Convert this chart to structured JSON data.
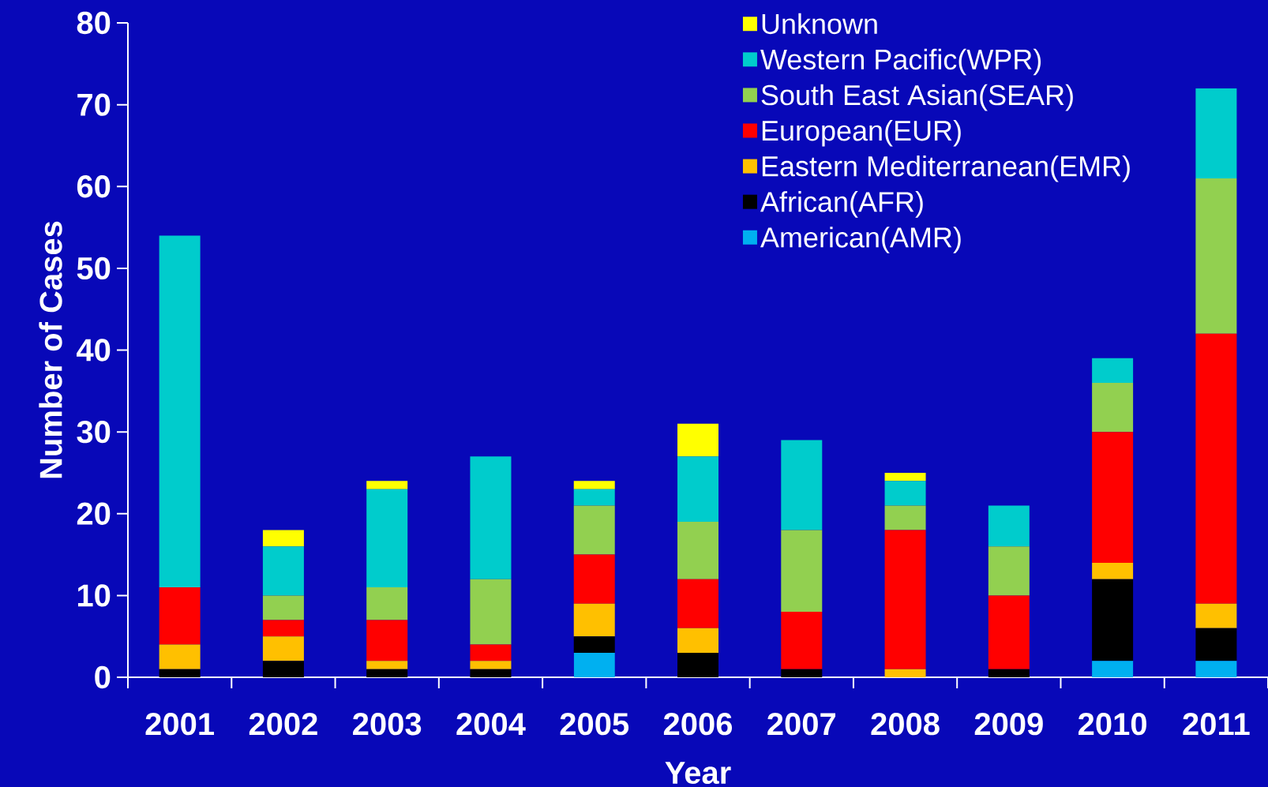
{
  "chart_data": {
    "type": "bar",
    "stacked": true,
    "xlabel": "Year",
    "ylabel": "Number of Cases",
    "categories": [
      "2001",
      "2002",
      "2003",
      "2004",
      "2005",
      "2006",
      "2007",
      "2008",
      "2009",
      "2010",
      "2011"
    ],
    "ylim": [
      0,
      80
    ],
    "yticks": [
      0,
      10,
      20,
      30,
      40,
      50,
      60,
      70,
      80
    ],
    "legend": "top right",
    "series": [
      {
        "name": "American(AMR)",
        "color": "#00b0f0",
        "values": [
          0,
          0,
          0,
          0,
          3,
          0,
          0,
          0,
          0,
          2,
          2
        ]
      },
      {
        "name": "African(AFR)",
        "color": "#000000",
        "values": [
          1,
          2,
          1,
          1,
          2,
          3,
          1,
          0,
          1,
          10,
          4
        ]
      },
      {
        "name": "Eastern Mediterranean(EMR)",
        "color": "#ffc000",
        "values": [
          3,
          3,
          1,
          1,
          4,
          3,
          0,
          1,
          0,
          2,
          3
        ]
      },
      {
        "name": "European(EUR)",
        "color": "#ff0000",
        "values": [
          7,
          2,
          5,
          2,
          6,
          6,
          7,
          17,
          9,
          16,
          33
        ]
      },
      {
        "name": "South East Asian(SEAR)",
        "color": "#92d050",
        "values": [
          0,
          3,
          4,
          8,
          6,
          7,
          10,
          3,
          6,
          6,
          19
        ]
      },
      {
        "name": "Western Pacific(WPR)",
        "color": "#00cccc",
        "values": [
          43,
          6,
          12,
          15,
          2,
          8,
          11,
          3,
          5,
          3,
          11
        ]
      },
      {
        "name": "Unknown",
        "color": "#ffff00",
        "values": [
          0,
          2,
          1,
          0,
          1,
          4,
          0,
          1,
          0,
          0,
          0
        ]
      }
    ]
  }
}
